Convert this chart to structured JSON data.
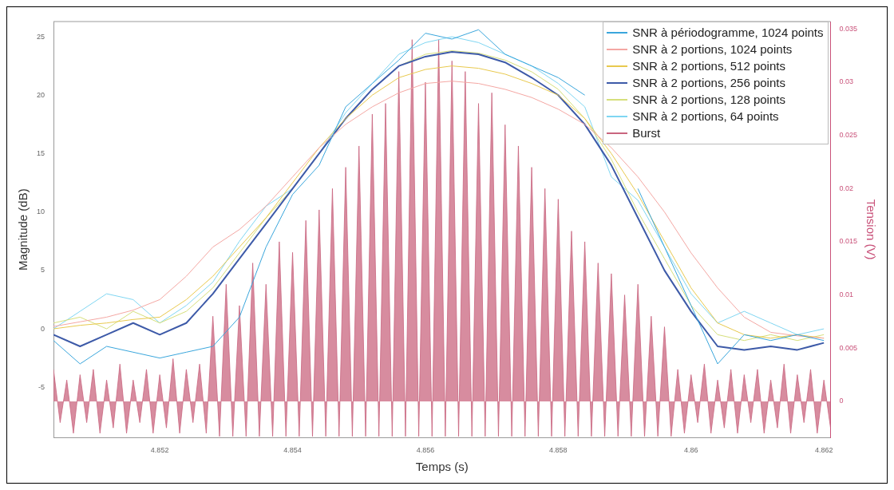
{
  "chart_data": {
    "type": "line",
    "xlabel": "Temps (s)",
    "ylabel": "Magnitude (dB)",
    "y2label": "Tension (V)",
    "xlim": [
      4.8504,
      4.8621
    ],
    "xticks": [
      4.852,
      4.854,
      4.856,
      4.858,
      4.86,
      4.862
    ],
    "ylim": [
      -9.3,
      26.3
    ],
    "yticks": [
      -5,
      0,
      5,
      10,
      15,
      20,
      25
    ],
    "y2lim": [
      -0.0034,
      0.0357
    ],
    "y2ticks": [
      0,
      0.005,
      0.01,
      0.015,
      0.02,
      0.025,
      0.03,
      0.035
    ],
    "grid": false,
    "legend": "top right",
    "marker": "none",
    "line_style": "solid",
    "x": [
      4.8504,
      4.8508,
      4.8512,
      4.8516,
      4.852,
      4.8524,
      4.8528,
      4.8532,
      4.8536,
      4.854,
      4.8544,
      4.8548,
      4.8552,
      4.8556,
      4.856,
      4.8564,
      4.8568,
      4.8572,
      4.8576,
      4.858,
      4.8584,
      4.8588,
      4.8592,
      4.8596,
      4.86,
      4.8604,
      4.8608,
      4.8612,
      4.8616,
      4.862
    ],
    "series": [
      {
        "name": "SNR à périodogramme, 1024 points",
        "color": "#3aa6dc",
        "values": [
          -1,
          -3,
          -1.5,
          -2,
          -2.5,
          -2,
          -1.5,
          1,
          7,
          11.5,
          14,
          19,
          21,
          23,
          25.3,
          24.8,
          25.6,
          23.5,
          22.5,
          21.5,
          20,
          null,
          12,
          7,
          2,
          -3,
          -0.5,
          -1,
          -0.5,
          -1
        ]
      },
      {
        "name": "SNR à 2 portions, 1024 points",
        "color": "#f4a7a3",
        "values": [
          0.2,
          0.6,
          1,
          1.6,
          2.5,
          4.5,
          7,
          8.5,
          10.5,
          13,
          15.5,
          17.5,
          19,
          20.2,
          21,
          21.2,
          21,
          20.5,
          19.8,
          18.8,
          17.5,
          15.5,
          13,
          10,
          6.5,
          3.5,
          1,
          -0.3,
          -0.6,
          -0.8
        ]
      },
      {
        "name": "SNR à 2 portions, 512 points",
        "color": "#e8c94e",
        "values": [
          0,
          0.3,
          0.5,
          0.8,
          1,
          2.5,
          4.5,
          7,
          9.5,
          12.5,
          15.5,
          18,
          20,
          21.5,
          22.2,
          22.5,
          22.3,
          21.8,
          21,
          20,
          18,
          15,
          11.5,
          7.5,
          3.5,
          0.5,
          -0.5,
          -0.8,
          -0.5,
          -0.8
        ]
      },
      {
        "name": "SNR à 2 portions, 256 points",
        "color": "#3d5aa8",
        "values": [
          -0.5,
          -1.5,
          -0.5,
          0.5,
          -0.5,
          0.5,
          3,
          6,
          9,
          12,
          15,
          18,
          20.5,
          22.5,
          23.3,
          23.7,
          23.5,
          22.8,
          21.5,
          20,
          17.5,
          14,
          9.5,
          5,
          1.5,
          -1.5,
          -1.8,
          -1.5,
          -1.8,
          -1.2
        ]
      },
      {
        "name": "SNR à 2 portions, 128 points",
        "color": "#d6df7c",
        "values": [
          0.5,
          1,
          0,
          1.5,
          0.5,
          1.5,
          3.5,
          6.5,
          9.5,
          12,
          15,
          18,
          20.5,
          22.5,
          23.5,
          23.8,
          23.6,
          23,
          22,
          20.5,
          18,
          14.5,
          10,
          6,
          2,
          -0.5,
          -1,
          -0.5,
          -1,
          -0.5
        ]
      },
      {
        "name": "SNR à 2 portions, 64 points",
        "color": "#7fd6f2",
        "values": [
          0,
          1.5,
          3,
          2.5,
          0.5,
          2,
          4,
          7.5,
          10.5,
          12,
          15,
          18.5,
          21,
          23.5,
          24.5,
          25,
          24.5,
          23.5,
          22.5,
          21,
          19,
          13,
          11,
          7,
          3,
          0.5,
          1.5,
          0.5,
          -0.5,
          0
        ]
      },
      {
        "name": "Burst",
        "type": "area",
        "axis": "y2",
        "color": "#c9657f",
        "x": [
          4.8504,
          4.8505,
          4.8506,
          4.8507,
          4.8508,
          4.8509,
          4.851,
          4.8511,
          4.8512,
          4.8513,
          4.8514,
          4.8515,
          4.8516,
          4.8517,
          4.8518,
          4.8519,
          4.852,
          4.8521,
          4.8522,
          4.8523,
          4.8524,
          4.8525,
          4.8526,
          4.8527,
          4.8528,
          4.8529,
          4.853,
          4.8531,
          4.8532,
          4.8533,
          4.8534,
          4.8535,
          4.8536,
          4.8537,
          4.8538,
          4.8539,
          4.854,
          4.8541,
          4.8542,
          4.8543,
          4.8544,
          4.8545,
          4.8546,
          4.8547,
          4.8548,
          4.8549,
          4.855,
          4.8551,
          4.8552,
          4.8553,
          4.8554,
          4.8555,
          4.8556,
          4.8557,
          4.8558,
          4.8559,
          4.856,
          4.8561,
          4.8562,
          4.8563,
          4.8564,
          4.8565,
          4.8566,
          4.8567,
          4.8568,
          4.8569,
          4.857,
          4.8571,
          4.8572,
          4.8573,
          4.8574,
          4.8575,
          4.8576,
          4.8577,
          4.8578,
          4.8579,
          4.858,
          4.8581,
          4.8582,
          4.8583,
          4.8584,
          4.8585,
          4.8586,
          4.8587,
          4.8588,
          4.8589,
          4.859,
          4.8591,
          4.8592,
          4.8593,
          4.8594,
          4.8595,
          4.8596,
          4.8597,
          4.8598,
          4.8599,
          4.86,
          4.8601,
          4.8602,
          4.8603,
          4.8604,
          4.8605,
          4.8606,
          4.8607,
          4.8608,
          4.8609,
          4.861,
          4.8611,
          4.8612,
          4.8613,
          4.8614,
          4.8615,
          4.8616,
          4.8617,
          4.8618,
          4.8619,
          4.862,
          4.8621
        ],
        "values": [
          0.003,
          -0.002,
          0.002,
          -0.003,
          0.0025,
          -0.002,
          0.003,
          -0.003,
          0.002,
          -0.0025,
          0.0035,
          -0.003,
          0.002,
          -0.002,
          0.003,
          -0.003,
          0.0025,
          -0.0025,
          0.004,
          -0.003,
          0.003,
          -0.002,
          0.0035,
          -0.003,
          0.008,
          -0.0033,
          0.011,
          -0.0033,
          0.009,
          -0.0033,
          0.013,
          -0.0033,
          0.011,
          -0.0033,
          0.015,
          -0.0033,
          0.014,
          -0.0033,
          0.017,
          -0.0033,
          0.018,
          -0.0033,
          0.02,
          -0.0033,
          0.022,
          -0.0033,
          0.024,
          -0.0033,
          0.027,
          -0.0033,
          0.028,
          -0.0033,
          0.031,
          -0.0033,
          0.034,
          -0.0033,
          0.03,
          -0.0033,
          0.034,
          -0.0033,
          0.032,
          -0.0033,
          0.031,
          -0.0033,
          0.028,
          -0.0033,
          0.029,
          -0.0033,
          0.026,
          -0.0033,
          0.024,
          -0.0033,
          0.022,
          -0.0033,
          0.02,
          -0.0033,
          0.019,
          -0.0033,
          0.016,
          -0.0033,
          0.015,
          -0.0033,
          0.013,
          -0.0033,
          0.012,
          -0.0033,
          0.01,
          -0.0033,
          0.011,
          -0.0033,
          0.008,
          -0.0033,
          0.007,
          -0.0033,
          0.003,
          -0.003,
          0.0025,
          -0.002,
          0.0035,
          -0.003,
          0.002,
          -0.0025,
          0.003,
          -0.003,
          0.0025,
          -0.002,
          0.003,
          -0.003,
          0.002,
          -0.0025,
          0.0035,
          -0.003,
          0.0025,
          -0.002,
          0.003,
          -0.003,
          0.002,
          -0.0025
        ]
      }
    ]
  }
}
